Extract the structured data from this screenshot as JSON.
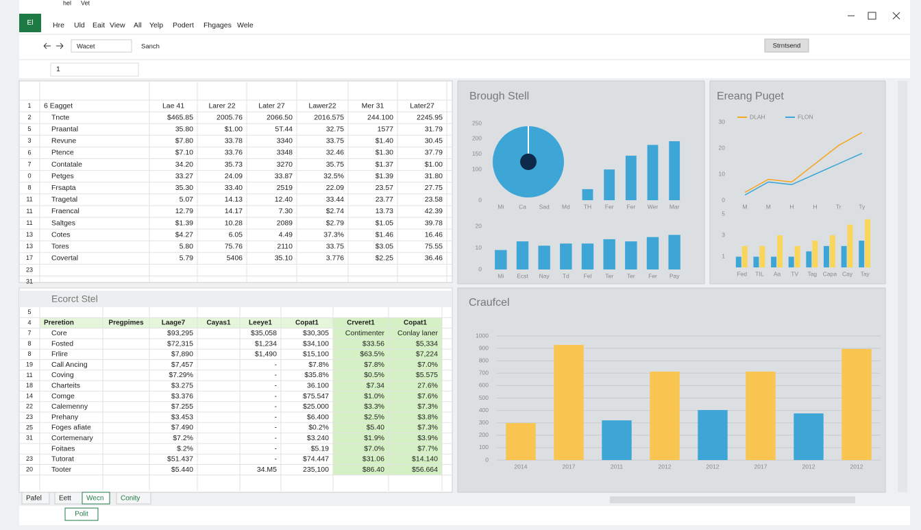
{
  "app": {
    "icon": "El",
    "title_items": [
      "hel",
      "Vet"
    ],
    "menu": [
      "Hre",
      "Uld",
      "Eait",
      "View",
      "All",
      "Yelp",
      "Podert",
      "Fhgages",
      "Wele"
    ],
    "name_box": "Wacet",
    "search": "Sanch",
    "button": "Strntsend",
    "formula": "1"
  },
  "sheet1": {
    "row_numbers": [
      "1",
      "2",
      "5",
      "3",
      "6",
      "7",
      "0",
      "8",
      "11",
      "11",
      "11",
      "13",
      "13",
      "17",
      "23",
      "31"
    ],
    "header": [
      "6 Eagget",
      "Lae 41",
      "Larer 22",
      "Later 27",
      "Lawer22",
      "Mer 31",
      "Later27"
    ],
    "rows": [
      [
        "Tncte",
        "$465.85",
        "2005.76",
        "2066.50",
        "2016.575",
        "244.100",
        "2245.95"
      ],
      [
        "Praantal",
        "35.80",
        "$1.00",
        "5T.44",
        "32.75",
        "1577",
        "31.79"
      ],
      [
        "Revune",
        "$7.80",
        "33.78",
        "3340",
        "33.75",
        "$1.40",
        "30.45"
      ],
      [
        "Ptence",
        "$7.10",
        "33.76",
        "3348",
        "32.46",
        "$1.30",
        "37.79"
      ],
      [
        "Contatale",
        "34.20",
        "35.73",
        "3270",
        "35.75",
        "$1.37",
        "$1.00"
      ],
      [
        "Petges",
        "33.27",
        "24.09",
        "33.87",
        "32.5%",
        "$1.39",
        "31.80"
      ],
      [
        "Frsapta",
        "35.30",
        "33.40",
        "2519",
        "22.09",
        "23.57",
        "27.75"
      ],
      [
        "Tragetal",
        "5.07",
        "14.13",
        "12.40",
        "33.44",
        "23.77",
        "23.58"
      ],
      [
        "Fraencal",
        "12.79",
        "14.17",
        "7.30",
        "$2.74",
        "13.73",
        "42.39"
      ],
      [
        "Saltges",
        "$1.39",
        "10.28",
        "2089",
        "$2.79",
        "$1.05",
        "39.78"
      ],
      [
        "Cotes",
        "$4.27",
        "6.05",
        "4.49",
        "37.3%",
        "$1.46",
        "16.46"
      ],
      [
        "Tores",
        "5.80",
        "75.76",
        "2110",
        "33.75",
        "$3.05",
        "75.55"
      ],
      [
        "Covertal",
        "5.79",
        "5406",
        "35.10",
        "3.776",
        "$2.25",
        "36.46"
      ]
    ]
  },
  "sheet2": {
    "title": "Ecorct Stel",
    "row_numbers": [
      "5",
      "4",
      "7",
      "8",
      "8",
      "19",
      "11",
      "18",
      "14",
      "22",
      "23",
      "25",
      "31",
      null,
      "23",
      "20"
    ],
    "header": [
      "Preretion",
      "Pregpimes",
      "Laage7",
      "Cayas1",
      "Leeye1",
      "Copat1",
      "Crveret1",
      "Copat1"
    ],
    "rows": [
      [
        "Core",
        null,
        "$93,295",
        null,
        "$35,058",
        "$30,305",
        "Contimenter",
        "Conlay laner"
      ],
      [
        "Fosted",
        null,
        "$72,315",
        null,
        "$1,234",
        "$34,100",
        "$33.56",
        "$5,334"
      ],
      [
        "Frlire",
        null,
        "$7,890",
        null,
        "$1,490",
        "$15,100",
        "$63.5%",
        "$7,224"
      ],
      [
        "Call Ancing",
        null,
        "$7,457",
        null,
        "-",
        "$7.8%",
        "$7.8%",
        "$7.0%"
      ],
      [
        "Coving",
        null,
        "$7.29%",
        null,
        "-",
        "$35.8%",
        "$0.5%",
        "$5.575"
      ],
      [
        "Charteits",
        null,
        "$3.275",
        null,
        "-",
        "36.100",
        "$7.34",
        "27.6%"
      ],
      [
        "Comge",
        null,
        "$3.376",
        null,
        "-",
        "$75.547",
        "$1.0%",
        "$7.6%"
      ],
      [
        "Calemenny",
        null,
        "$7.255",
        null,
        "-",
        "$25.000",
        "$3.3%",
        "$7.3%"
      ],
      [
        "Prehany",
        null,
        "$3.453",
        null,
        "-",
        "$6.400",
        "$2.5%",
        "$3.8%"
      ],
      [
        "Foges afiate",
        null,
        "$7.490",
        null,
        "-",
        "$0.2%",
        "$5.40",
        "$7.3%"
      ],
      [
        "Cortemenary",
        null,
        "$7.2%",
        null,
        "-",
        "$3.240",
        "$1.9%",
        "$3.9%"
      ],
      [
        "Foitaes",
        null,
        "$.2%",
        null,
        "-",
        "$5.19",
        "$7.0%",
        "$7.7%"
      ],
      [
        "Tutorat",
        null,
        "$51.437",
        null,
        "-",
        "$74.447",
        "$31.06",
        "$14.140"
      ],
      [
        "Tooter",
        null,
        "$5.440",
        null,
        "34.M5",
        "235,100",
        "$86.40",
        "$56.664"
      ]
    ]
  },
  "charts": [
    {
      "type": "bar",
      "title": "Brough Stell",
      "categories": [
        "Mi",
        "Ca",
        "Sad",
        "Md",
        "TH",
        "Fer",
        "Fer",
        "Wer",
        "Mar"
      ],
      "values": [
        null,
        null,
        null,
        null,
        36,
        100,
        145,
        180,
        192
      ],
      "colors": [
        "#3ea6d6",
        "#3ea6d6",
        "#3ea6d6",
        "#3ea6d6",
        "#3ea6d6",
        "#3ea6d6",
        "#3ea6d6",
        "#3ea6d6",
        "#3ea6d6"
      ],
      "ylim": [
        0,
        250
      ],
      "yticks": [
        0,
        100,
        150,
        200,
        250
      ],
      "grid": false
    },
    {
      "type": "bar",
      "categories": [
        "Mi",
        "Ecst",
        "Nay",
        "Td",
        "Fel",
        "Ter",
        "Ter",
        "Fer",
        "Pay"
      ],
      "values": [
        9,
        13,
        11,
        12,
        12,
        14,
        13,
        15,
        16
      ],
      "colors": [
        "#3ea6d6",
        "#3ea6d6",
        "#3ea6d6",
        "#3ea6d6",
        "#3ea6d6",
        "#3ea6d6",
        "#3ea6d6",
        "#3ea6d6",
        "#3ea6d6"
      ],
      "ylim": [
        0,
        20
      ],
      "yticks": [
        0,
        10,
        20
      ],
      "grid": false
    },
    {
      "type": "line",
      "title": "Ereang Puget",
      "categories": [
        "M",
        "M",
        "H",
        "H",
        "Tr",
        "Ty"
      ],
      "series": [
        {
          "name": "DLAH",
          "color": "#f5a623",
          "values": [
            3,
            8,
            7,
            14,
            21,
            26
          ]
        },
        {
          "name": "FLON",
          "color": "#3ea6d6",
          "values": [
            2,
            7,
            6,
            10,
            14,
            18
          ]
        }
      ],
      "ylim": [
        0,
        30
      ],
      "yticks": [
        0,
        10,
        20,
        30
      ],
      "grid": false
    },
    {
      "type": "grouped_bar",
      "categories": [
        "Fed",
        "TIL",
        "Aa",
        "TV",
        "Tag",
        "Capa",
        "Cay",
        "Tay"
      ],
      "series": [
        {
          "name": "Blue",
          "color": "#3ea6d6",
          "values": [
            1,
            1,
            1,
            1,
            1.5,
            2,
            2,
            2.5
          ]
        },
        {
          "name": "Yellow",
          "color": "#f9d55a",
          "values": [
            2,
            2,
            3,
            2,
            2.5,
            3,
            4,
            4.5
          ]
        }
      ],
      "ylim": [
        0,
        5
      ],
      "yticks": [
        1,
        3,
        5
      ],
      "grid": false
    },
    {
      "type": "bar",
      "title": "Craufcel",
      "categories": [
        "2014",
        "2017",
        "2011",
        "2012",
        "2012",
        "2017",
        "2012",
        "2012"
      ],
      "values": [
        298,
        928,
        320,
        713,
        403,
        713,
        376,
        895
      ],
      "colors": [
        "#f9c550",
        "#f9c550",
        "#3ea6d6",
        "#f9c550",
        "#3ea6d6",
        "#f9c550",
        "#3ea6d6",
        "#f9c550"
      ],
      "ylim": [
        0,
        1000
      ],
      "yticks": [
        0,
        100,
        200,
        300,
        400,
        500,
        600,
        700,
        800,
        900,
        1000
      ],
      "grid": true
    }
  ],
  "tabs": [
    "Pafel",
    "Eett",
    "Wecn",
    "Conity"
  ],
  "status": "Polit"
}
